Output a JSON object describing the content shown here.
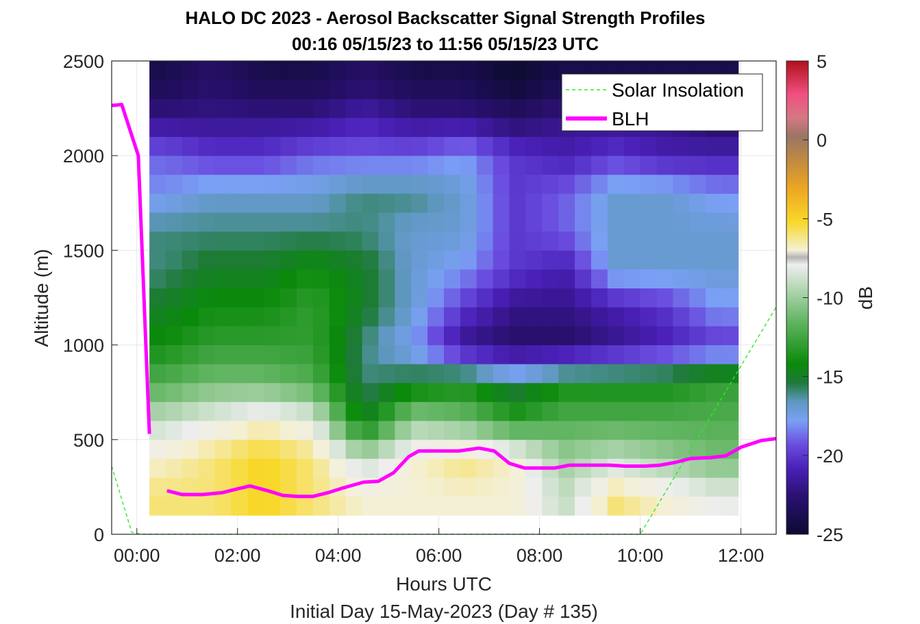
{
  "chart_data": {
    "type": "heatmap",
    "title": "HALO DC 2023 - Aerosol Backscatter Signal Strength Profiles",
    "subtitle": "00:16 05/15/23 to 11:56 05/15/23  UTC",
    "xlabel": "Hours UTC",
    "xlabel2": "Initial Day 15-May-2023 (Day # 135)",
    "ylabel": "Altitude (m)",
    "xlim": [
      -0.5,
      12.7
    ],
    "ylim": [
      0,
      2500
    ],
    "x_ticks": [
      0,
      2,
      4,
      6,
      8,
      10,
      12
    ],
    "x_tick_labels": [
      "00:00",
      "02:00",
      "04:00",
      "06:00",
      "08:00",
      "10:00",
      "12:00"
    ],
    "y_ticks": [
      0,
      500,
      1000,
      1500,
      2000,
      2500
    ],
    "y_tick_labels": [
      "0",
      "500",
      "1000",
      "1500",
      "2000",
      "2500"
    ],
    "grid": true,
    "colorbar": {
      "label": "dB",
      "range": [
        -25,
        5
      ],
      "ticks": [
        5,
        0,
        -5,
        -10,
        -15,
        -20,
        -25
      ],
      "tick_labels": [
        "5",
        "0",
        "-5",
        "-10",
        "-15",
        "-20",
        "-25"
      ]
    },
    "legend": {
      "placement": "top-right",
      "entries": [
        {
          "name": "Solar Insolation",
          "style": "dashed",
          "color": "#2ee82e"
        },
        {
          "name": "BLH",
          "style": "solid",
          "color": "#ff00ff"
        }
      ]
    },
    "heatmap_x_range": [
      0.25,
      11.95
    ],
    "heatmap_y_range": [
      100,
      2500
    ],
    "heatmap_time_columns": [
      0.5,
      1.5,
      2.5,
      3.5,
      4.5,
      5.5,
      6.5,
      7.5,
      8.5,
      9.5,
      10.5,
      11.5
    ],
    "heatmap_altitude_rows": [
      200,
      400,
      600,
      800,
      1000,
      1200,
      1400,
      1600,
      1800,
      2000,
      2200,
      2400
    ],
    "heatmap_db_grid": [
      [
        -6,
        -6,
        -5,
        -6,
        -7,
        -7,
        -7,
        -7,
        -9,
        -6,
        -7,
        -8
      ],
      [
        -7,
        -6,
        -5,
        -6,
        -9,
        -7,
        -6,
        -7,
        -10,
        -9,
        -10,
        -11
      ],
      [
        -9,
        -8,
        -7,
        -8,
        -15,
        -10,
        -11,
        -13,
        -12,
        -12,
        -12,
        -12
      ],
      [
        -12,
        -11,
        -11,
        -12,
        -16,
        -15,
        -14,
        -16,
        -14,
        -14,
        -14,
        -13
      ],
      [
        -14,
        -13,
        -13,
        -13,
        -16,
        -18,
        -22,
        -23,
        -23,
        -22,
        -21,
        -20
      ],
      [
        -15,
        -14,
        -14,
        -13,
        -15,
        -17,
        -20,
        -22,
        -22,
        -21,
        -20,
        -18
      ],
      [
        -16,
        -15,
        -15,
        -14,
        -15,
        -17,
        -18,
        -20,
        -21,
        -17,
        -17,
        -17
      ],
      [
        -16,
        -16,
        -16,
        -16,
        -16,
        -17,
        -17,
        -20,
        -19,
        -17,
        -17,
        -17
      ],
      [
        -18,
        -17,
        -17,
        -17,
        -16,
        -16,
        -17,
        -20,
        -19,
        -17,
        -17,
        -18
      ],
      [
        -19,
        -20,
        -20,
        -19,
        -19,
        -19,
        -18,
        -20,
        -21,
        -20,
        -21,
        -21
      ],
      [
        -22,
        -22,
        -22,
        -22,
        -21,
        -22,
        -22,
        -23,
        -22,
        -22,
        -22,
        -23
      ],
      [
        -24,
        -23,
        -24,
        -24,
        -23,
        -24,
        -24,
        -25,
        -24,
        -24,
        -24,
        -24
      ]
    ],
    "series": [
      {
        "name": "BLH",
        "type": "line",
        "segments": [
          {
            "x": [
              -0.5,
              -0.3,
              0.03,
              0.25
            ],
            "y": [
              2265,
              2270,
              2000,
              530
            ]
          },
          {
            "x": [
              0.6,
              0.9,
              1.3,
              1.7,
              2.0,
              2.25,
              2.6,
              2.9,
              3.2,
              3.5,
              3.8,
              4.1,
              4.5,
              4.8,
              5.1,
              5.4,
              5.6,
              6.0,
              6.4,
              6.8,
              7.1,
              7.4,
              7.7,
              8.0,
              8.3,
              8.6,
              9.0,
              9.4,
              9.7,
              10.1,
              10.4,
              10.7,
              11.0,
              11.4,
              11.7,
              12.0,
              12.4,
              12.7
            ],
            "y": [
              230,
              210,
              210,
              220,
              240,
              255,
              230,
              205,
              200,
              200,
              220,
              245,
              275,
              280,
              325,
              410,
              440,
              440,
              440,
              455,
              440,
              375,
              350,
              350,
              350,
              365,
              365,
              365,
              360,
              360,
              365,
              380,
              400,
              405,
              415,
              460,
              495,
              505
            ]
          }
        ]
      },
      {
        "name": "Solar Insolation",
        "type": "line",
        "x": [
          -0.5,
          -0.1,
          0.1,
          10.0,
          12.7
        ],
        "y": [
          360,
          10,
          0,
          0,
          1200
        ]
      }
    ]
  }
}
